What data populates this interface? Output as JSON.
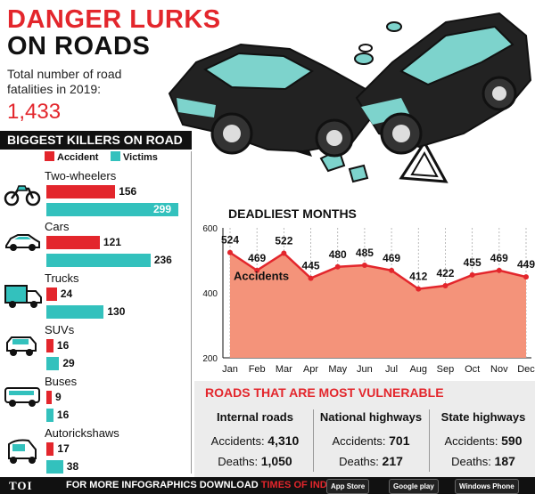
{
  "header": {
    "line1": "DANGER LURKS",
    "line2": "ON ROADS"
  },
  "subtitle": "Total number of road fatalities in 2019:",
  "total_fatalities": "1,433",
  "left_panel": {
    "title": "BIGGEST KILLERS ON ROAD",
    "legend": [
      {
        "label": "Accident",
        "color": "#e3262c"
      },
      {
        "label": "Victims",
        "color": "#33c1bd"
      }
    ],
    "rows": [
      {
        "label": "Two-wheelers",
        "accident": 156,
        "victims": 299,
        "accident_text": "156",
        "victims_text": "299",
        "icon": "motorcycle-icon"
      },
      {
        "label": "Cars",
        "accident": 121,
        "victims": 236,
        "accident_text": "121",
        "victims_text": "236",
        "icon": "car-icon"
      },
      {
        "label": "Trucks",
        "accident": 24,
        "victims": 130,
        "accident_text": "24",
        "victims_text": "130",
        "icon": "truck-icon"
      },
      {
        "label": "SUVs",
        "accident": 16,
        "victims": 29,
        "accident_text": "16",
        "victims_text": "29",
        "icon": "suv-icon"
      },
      {
        "label": "Buses",
        "accident": 9,
        "victims": 16,
        "accident_text": "9",
        "victims_text": "16",
        "icon": "bus-icon"
      },
      {
        "label": "Autorickshaws",
        "accident": 17,
        "victims": 38,
        "accident_text": "17",
        "victims_text": "38",
        "icon": "autorickshaw-icon"
      }
    ]
  },
  "chart_data": [
    {
      "type": "bar",
      "title": "BIGGEST KILLERS ON ROAD",
      "categories": [
        "Two-wheelers",
        "Cars",
        "Trucks",
        "SUVs",
        "Buses",
        "Autorickshaws"
      ],
      "series": [
        {
          "name": "Accident",
          "values": [
            156,
            121,
            24,
            16,
            9,
            17
          ]
        },
        {
          "name": "Victims",
          "values": [
            299,
            236,
            130,
            29,
            16,
            38
          ]
        }
      ],
      "orientation": "horizontal"
    },
    {
      "type": "area",
      "title": "DEADLIEST MONTHS",
      "categories": [
        "Jan",
        "Feb",
        "Mar",
        "Apr",
        "May",
        "Jun",
        "Jul",
        "Aug",
        "Sep",
        "Oct",
        "Nov",
        "Dec"
      ],
      "series": [
        {
          "name": "Accidents",
          "values": [
            524,
            469,
            522,
            445,
            480,
            485,
            469,
            412,
            422,
            455,
            469,
            449
          ]
        }
      ],
      "ylim": [
        200,
        600
      ],
      "yticks": [
        200,
        400,
        600
      ],
      "grid": "vertical-dashed",
      "fill_color": "#f4937a",
      "line_color": "#e3262c"
    }
  ],
  "vulnerable": {
    "title": "ROADS THAT ARE MOST VULNERABLE",
    "accidents_label": "Accidents:",
    "deaths_label": "Deaths:",
    "columns": [
      {
        "name": "Internal roads",
        "accidents": "4,310",
        "deaths": "1,050"
      },
      {
        "name": "National highways",
        "accidents": "701",
        "deaths": "217"
      },
      {
        "name": "State highways",
        "accidents": "590",
        "deaths": "187"
      }
    ]
  },
  "footer": {
    "brand": "TOI",
    "text": "FOR MORE INFOGRAPHICS DOWNLOAD",
    "app_name": "TIMES OF INDIA APP",
    "badges": [
      "App Store",
      "Google play",
      "Windows Phone"
    ]
  }
}
